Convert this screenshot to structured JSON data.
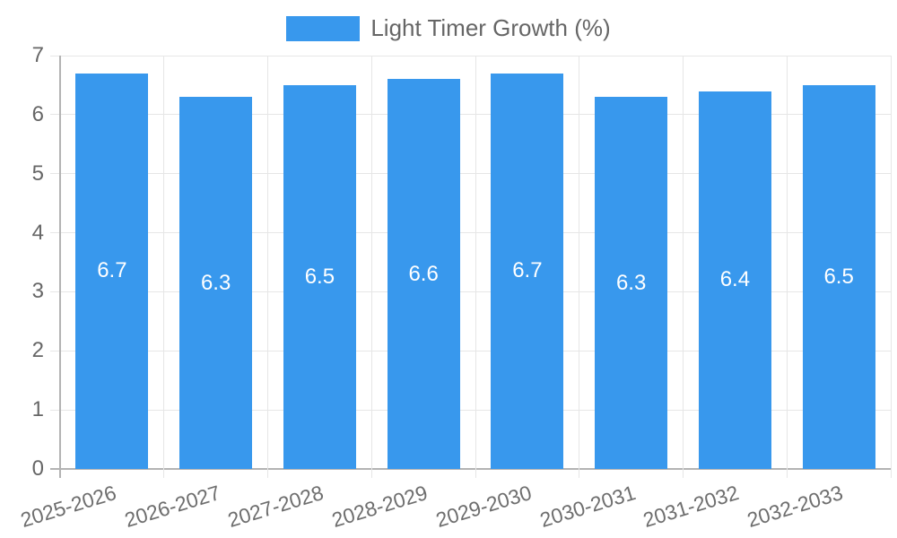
{
  "legend": {
    "label": "Light Timer Growth (%)"
  },
  "chart_data": {
    "type": "bar",
    "title": "Light Timer Growth (%)",
    "series_name": "Light Timer Growth (%)",
    "categories": [
      "2025-2026",
      "2026-2027",
      "2027-2028",
      "2028-2029",
      "2029-2030",
      "2030-2031",
      "2031-2032",
      "2032-2033"
    ],
    "values": [
      6.7,
      6.3,
      6.5,
      6.6,
      6.7,
      6.3,
      6.4,
      6.5
    ],
    "value_labels": [
      "6.7",
      "6.3",
      "6.5",
      "6.6",
      "6.7",
      "6.3",
      "6.4",
      "6.5"
    ],
    "ytick_labels": [
      "0",
      "1",
      "2",
      "3",
      "4",
      "5",
      "6",
      "7"
    ],
    "xlabel": "",
    "ylabel": "",
    "ylim": [
      0,
      7
    ],
    "ytick_step": 1,
    "grid": true,
    "legend_position": "top",
    "value_label_position": "inside-center",
    "xtick_rotation_deg": -17,
    "bar_color": "#3898ed",
    "value_label_color": "#ffffff",
    "grid_color": "#e6e6e6",
    "axis_color": "#b3b3b3",
    "tick_label_color": "#666666"
  }
}
